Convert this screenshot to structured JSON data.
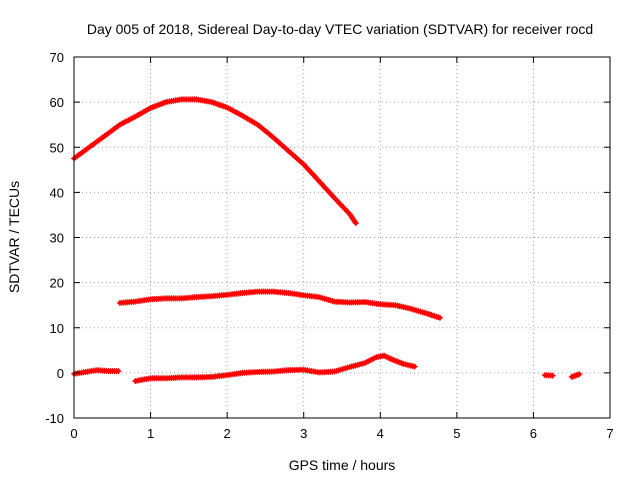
{
  "chart_data": {
    "type": "scatter",
    "title": "Day 005 of 2018, Sidereal Day-to-day VTEC variation (SDTVAR) for receiver rocd",
    "xlabel": "GPS time / hours",
    "ylabel": "SDTVAR / TECUs",
    "xlim": [
      0,
      7
    ],
    "ylim": [
      -10,
      70
    ],
    "xticks": [
      0,
      1,
      2,
      3,
      4,
      5,
      6,
      7
    ],
    "yticks": [
      -10,
      0,
      10,
      20,
      30,
      40,
      50,
      60,
      70
    ],
    "grid": true,
    "marker": "plus",
    "color": "#ff0000",
    "series": [
      {
        "name": "track-1",
        "points": [
          [
            0.0,
            47.5
          ],
          [
            0.2,
            50.0
          ],
          [
            0.4,
            52.5
          ],
          [
            0.6,
            55.0
          ],
          [
            0.8,
            56.8
          ],
          [
            1.0,
            58.7
          ],
          [
            1.2,
            60.0
          ],
          [
            1.4,
            60.6
          ],
          [
            1.6,
            60.6
          ],
          [
            1.8,
            60.0
          ],
          [
            2.0,
            58.8
          ],
          [
            2.2,
            57.0
          ],
          [
            2.4,
            55.0
          ],
          [
            2.6,
            52.2
          ],
          [
            2.8,
            49.2
          ],
          [
            3.0,
            46.2
          ],
          [
            3.2,
            42.5
          ],
          [
            3.4,
            38.8
          ],
          [
            3.6,
            35.2
          ],
          [
            3.68,
            33.2
          ]
        ]
      },
      {
        "name": "track-2",
        "points": [
          [
            0.6,
            15.5
          ],
          [
            0.8,
            15.8
          ],
          [
            1.0,
            16.3
          ],
          [
            1.2,
            16.5
          ],
          [
            1.4,
            16.5
          ],
          [
            1.6,
            16.8
          ],
          [
            1.8,
            17.0
          ],
          [
            2.0,
            17.3
          ],
          [
            2.2,
            17.7
          ],
          [
            2.4,
            18.0
          ],
          [
            2.6,
            18.0
          ],
          [
            2.8,
            17.7
          ],
          [
            3.0,
            17.2
          ],
          [
            3.2,
            16.8
          ],
          [
            3.4,
            15.8
          ],
          [
            3.6,
            15.6
          ],
          [
            3.8,
            15.7
          ],
          [
            4.0,
            15.2
          ],
          [
            4.2,
            15.0
          ],
          [
            4.4,
            14.2
          ],
          [
            4.6,
            13.2
          ],
          [
            4.78,
            12.2
          ]
        ]
      },
      {
        "name": "track-3",
        "points": [
          [
            0.0,
            -0.2
          ],
          [
            0.15,
            0.2
          ],
          [
            0.3,
            0.6
          ],
          [
            0.45,
            0.4
          ],
          [
            0.58,
            0.4
          ]
        ]
      },
      {
        "name": "track-4",
        "points": [
          [
            0.8,
            -1.8
          ],
          [
            1.0,
            -1.2
          ],
          [
            1.2,
            -1.2
          ],
          [
            1.4,
            -1.0
          ],
          [
            1.6,
            -1.0
          ],
          [
            1.8,
            -0.9
          ],
          [
            2.0,
            -0.5
          ],
          [
            2.2,
            0.0
          ],
          [
            2.4,
            0.2
          ],
          [
            2.6,
            0.3
          ],
          [
            2.8,
            0.6
          ],
          [
            3.0,
            0.7
          ],
          [
            3.1,
            0.4
          ],
          [
            3.2,
            0.1
          ],
          [
            3.4,
            0.3
          ],
          [
            3.6,
            1.3
          ],
          [
            3.8,
            2.2
          ],
          [
            3.95,
            3.5
          ],
          [
            4.05,
            3.8
          ],
          [
            4.15,
            3.0
          ],
          [
            4.3,
            2.0
          ],
          [
            4.45,
            1.4
          ]
        ]
      },
      {
        "name": "track-5",
        "points": [
          [
            6.15,
            -0.5
          ],
          [
            6.25,
            -0.6
          ]
        ]
      },
      {
        "name": "track-6",
        "points": [
          [
            6.5,
            -0.9
          ],
          [
            6.6,
            -0.3
          ]
        ]
      }
    ]
  }
}
